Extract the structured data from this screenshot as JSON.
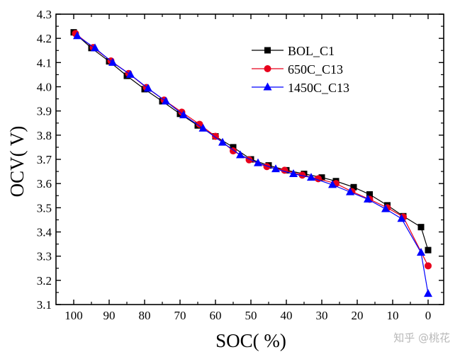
{
  "watermark": "知乎 @桃花",
  "chart_data": {
    "type": "line",
    "title": "",
    "xlabel": "SOC( %)",
    "ylabel": "OCV( V)",
    "xlim": [
      100,
      0
    ],
    "ylim": [
      3.1,
      4.3
    ],
    "x_reversed": true,
    "xticks": [
      100,
      90,
      80,
      70,
      60,
      50,
      40,
      30,
      20,
      10,
      0
    ],
    "yticks": [
      3.1,
      3.2,
      3.3,
      3.4,
      3.5,
      3.6,
      3.7,
      3.8,
      3.9,
      4.0,
      4.1,
      4.2,
      4.3
    ],
    "xtick_labels": [
      "100",
      "90",
      "80",
      "70",
      "60",
      "50",
      "40",
      "30",
      "20",
      "10",
      "0"
    ],
    "ytick_labels": [
      "3.1",
      "3.2",
      "3.3",
      "3.4",
      "3.5",
      "3.6",
      "3.7",
      "3.8",
      "3.9",
      "4.0",
      "4.1",
      "4.2",
      "4.3"
    ],
    "grid": false,
    "legend_position": "top-right",
    "series": [
      {
        "name": "BOL_C1",
        "color": "#000000",
        "marker": "square",
        "x": [
          100,
          95,
          90,
          85,
          80,
          75,
          70,
          65,
          60,
          55,
          50,
          45,
          40,
          35,
          30,
          26,
          21,
          16.5,
          11.5,
          7,
          2,
          0
        ],
        "y": [
          4.225,
          4.16,
          4.105,
          4.045,
          3.99,
          3.94,
          3.888,
          3.84,
          3.795,
          3.75,
          3.7,
          3.675,
          3.655,
          3.64,
          3.625,
          3.61,
          3.585,
          3.555,
          3.51,
          3.465,
          3.42,
          3.325
        ]
      },
      {
        "name": "650C_C13",
        "color": "#e8001c",
        "marker": "circle",
        "x": [
          99.5,
          94.5,
          89.5,
          84.5,
          79.5,
          74.5,
          69.5,
          64.5,
          60,
          55,
          50.5,
          45.5,
          40.5,
          35.5,
          31,
          26,
          21.5,
          16.5,
          11.5,
          7,
          0
        ],
        "y": [
          4.22,
          4.162,
          4.107,
          4.055,
          3.997,
          3.945,
          3.895,
          3.845,
          3.795,
          3.735,
          3.698,
          3.67,
          3.655,
          3.635,
          3.62,
          3.6,
          3.567,
          3.535,
          3.5,
          3.462,
          3.26
        ]
      },
      {
        "name": "1450C_C13",
        "color": "#0000ff",
        "marker": "triangle",
        "x": [
          99,
          94,
          89,
          84,
          79,
          74,
          69,
          63.5,
          58,
          53,
          48,
          43,
          38,
          33,
          27,
          22,
          17,
          12,
          7.5,
          2,
          0
        ],
        "y": [
          4.21,
          4.16,
          4.1,
          4.05,
          3.993,
          3.94,
          3.883,
          3.828,
          3.77,
          3.718,
          3.685,
          3.66,
          3.64,
          3.625,
          3.595,
          3.565,
          3.535,
          3.495,
          3.455,
          3.315,
          3.145
        ]
      }
    ]
  }
}
